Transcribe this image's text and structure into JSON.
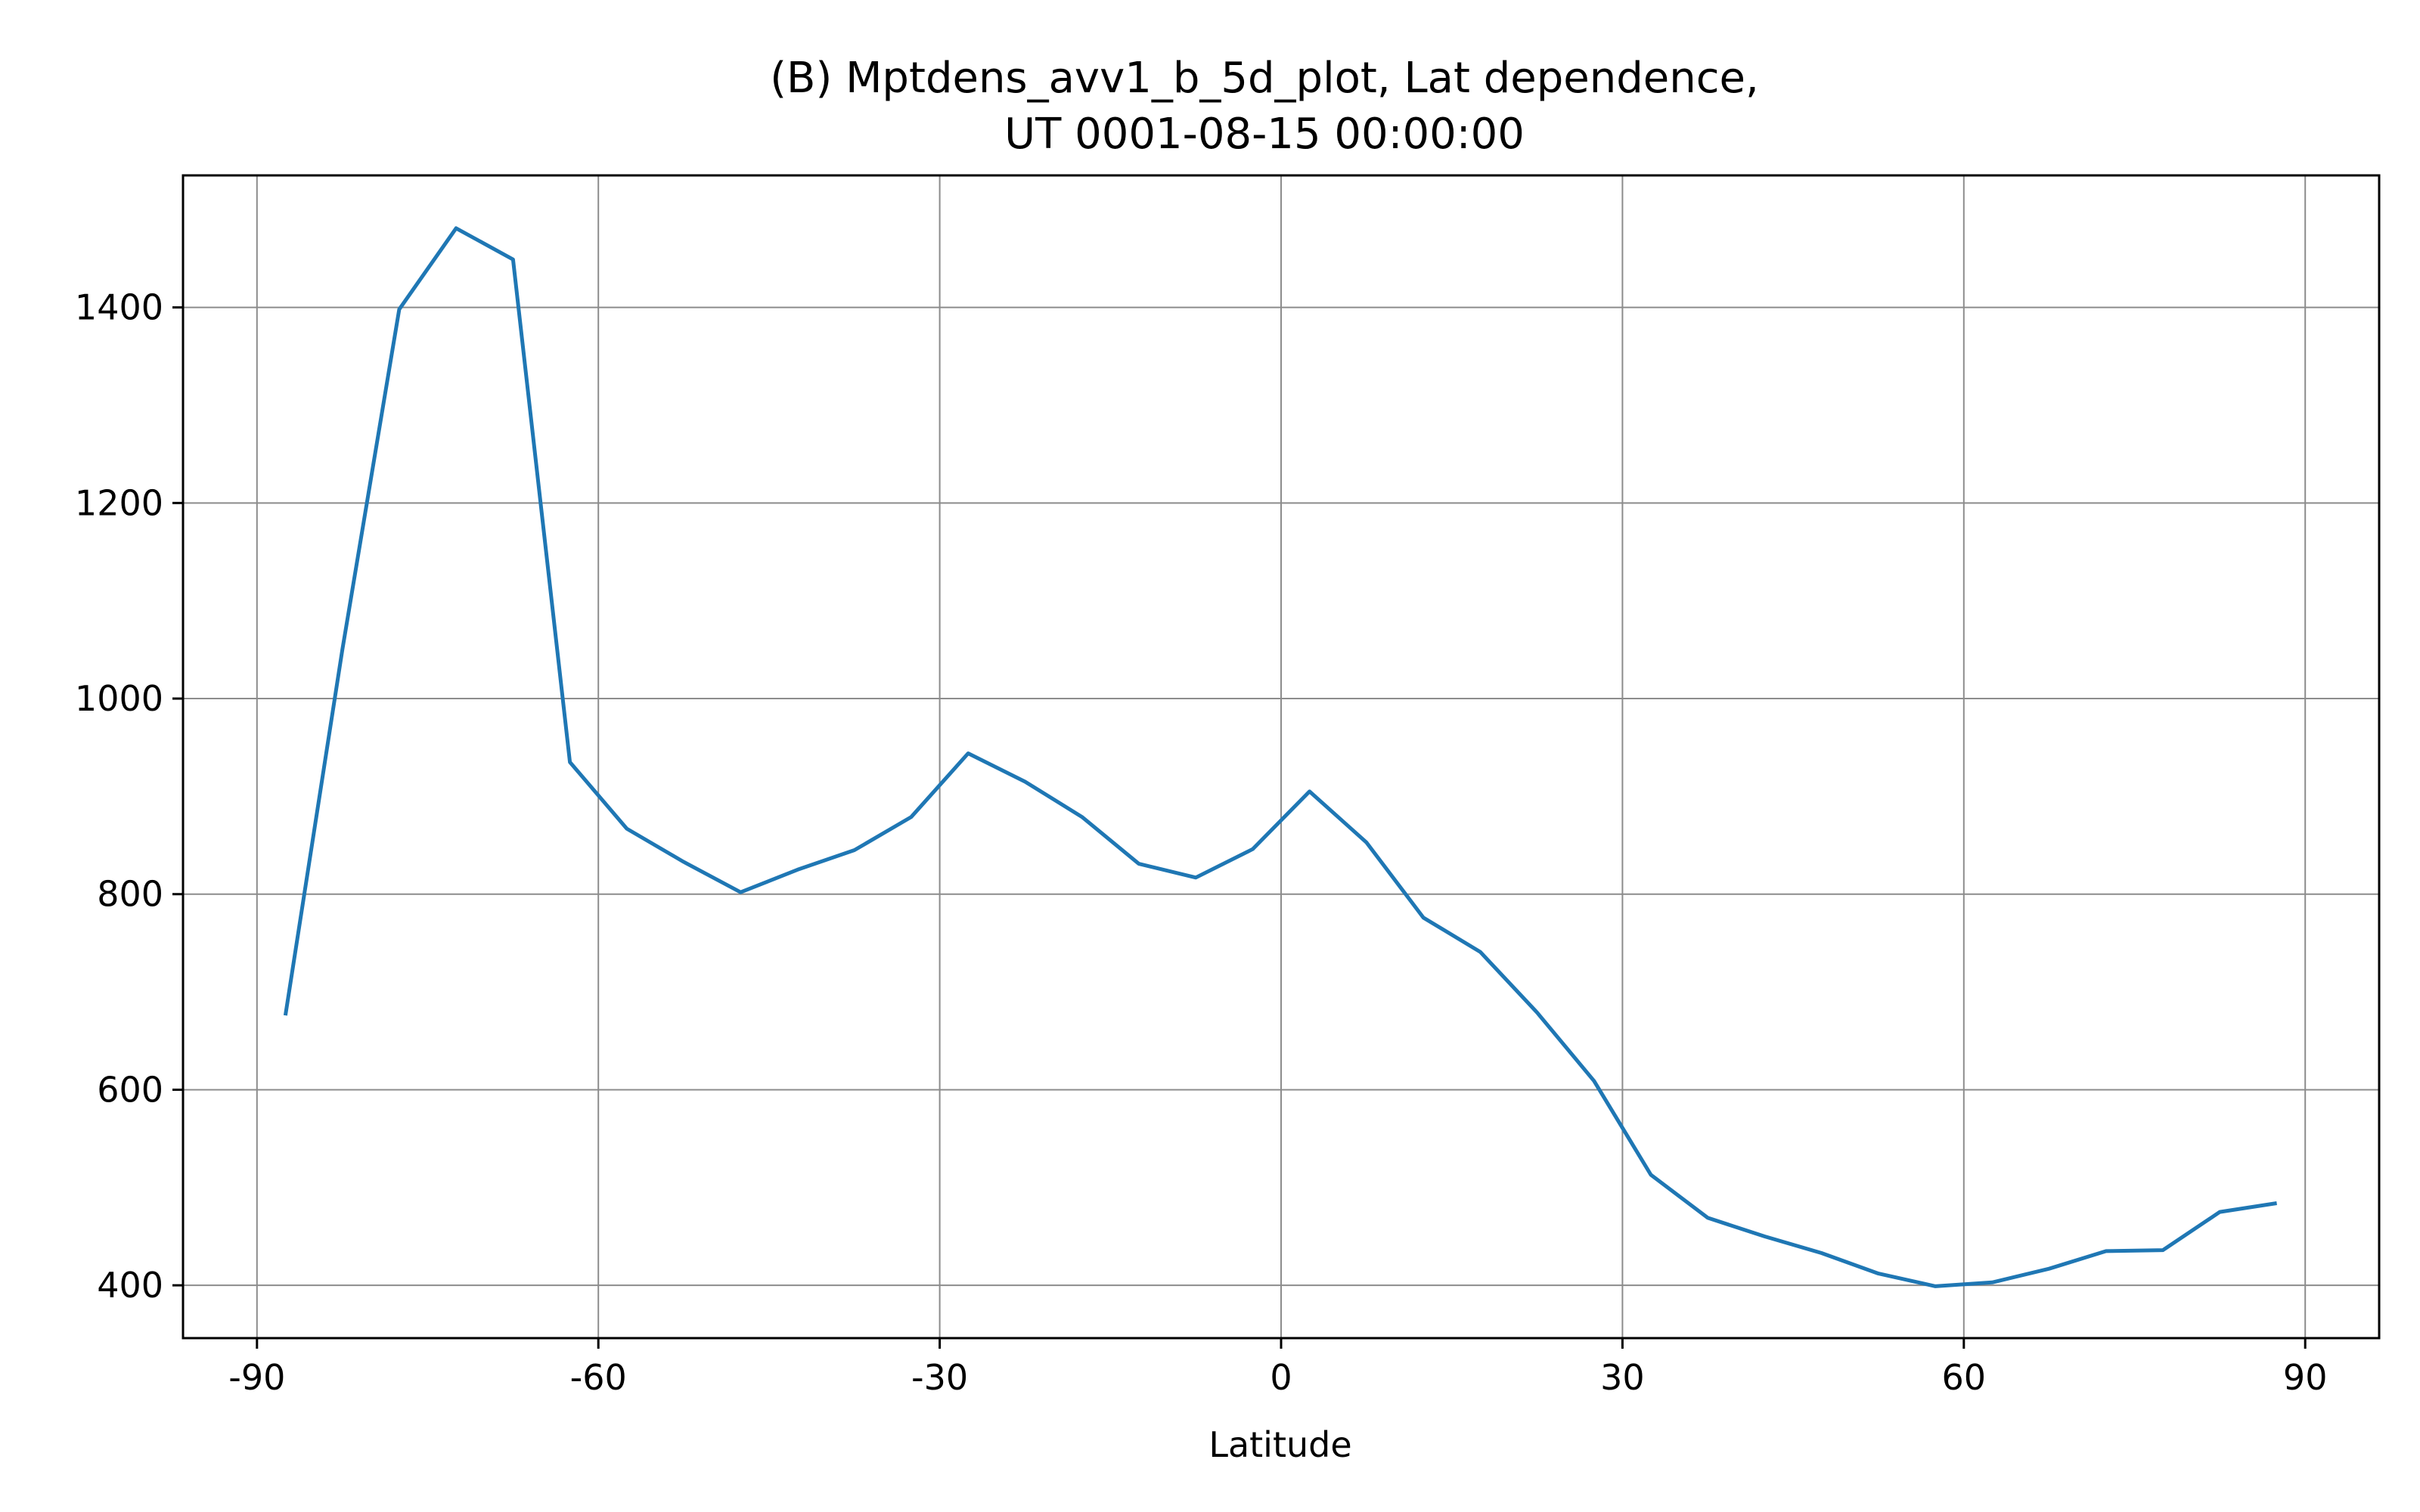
{
  "chart_data": {
    "type": "line",
    "title_lines": [
      "(B) Mptdens_avv1_b_5d_plot, Lat dependence,",
      "UT 0001-08-15 00:00:00"
    ],
    "xlabel": "Latitude",
    "ylabel": "",
    "xlim": [
      -96.5,
      96.5
    ],
    "ylim": [
      346,
      1535
    ],
    "xticks": [
      -90,
      -60,
      -30,
      0,
      30,
      60,
      90
    ],
    "yticks": [
      400,
      600,
      800,
      1000,
      1200,
      1400
    ],
    "grid": true,
    "legend": "none",
    "line_color": "#1f77b4",
    "series": [
      {
        "x": [
          -87.5,
          -82.5,
          -77.5,
          -72.5,
          -67.5,
          -62.5,
          -57.5,
          -52.5,
          -47.5,
          -42.5,
          -37.5,
          -32.5,
          -27.5,
          -22.5,
          -17.5,
          -12.5,
          -7.5,
          -2.5,
          2.5,
          7.5,
          12.5,
          17.5,
          22.5,
          27.5,
          32.5,
          37.5,
          42.5,
          47.5,
          52.5,
          57.5,
          62.5,
          67.5,
          72.5,
          77.5,
          82.5,
          87.5
        ],
        "values": [
          676,
          1050,
          1398,
          1481,
          1449,
          935,
          867,
          833,
          802,
          825,
          845,
          879,
          944,
          915,
          879,
          831,
          817,
          846,
          905,
          853,
          776,
          741,
          679,
          609,
          513,
          469,
          450,
          433,
          412,
          399,
          403,
          417,
          435,
          436,
          475,
          484
        ]
      }
    ]
  }
}
